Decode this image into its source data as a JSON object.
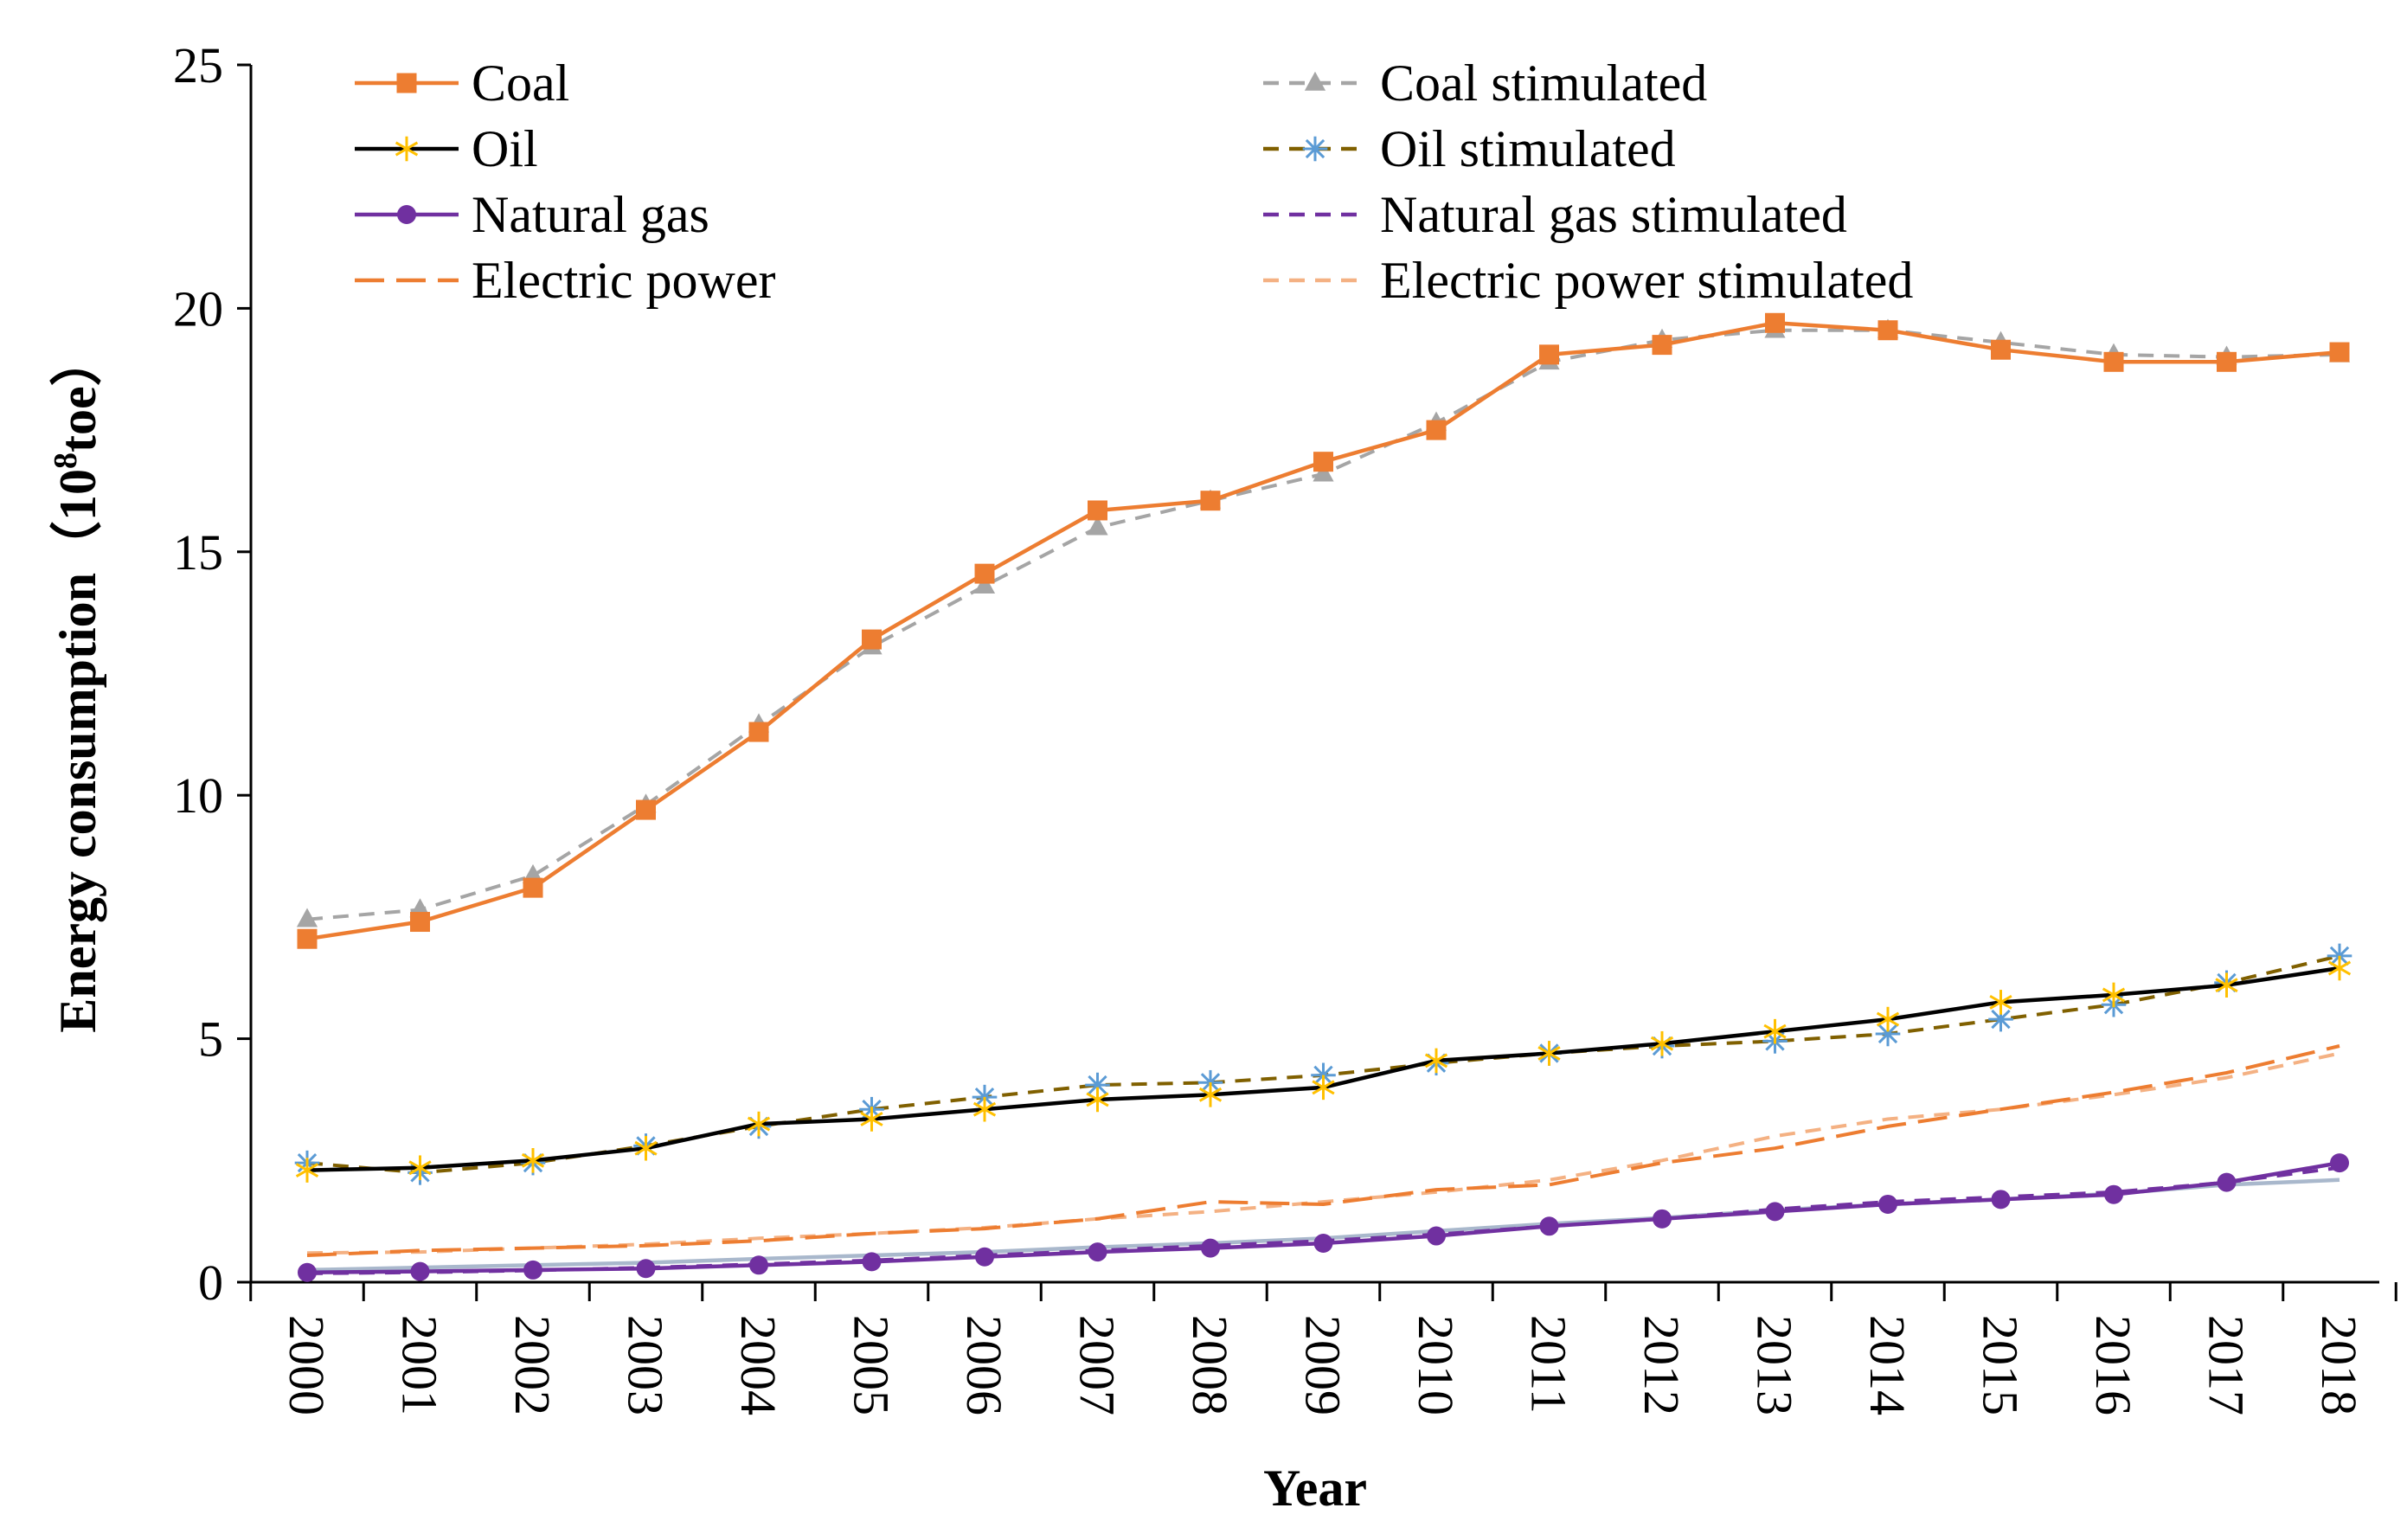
{
  "chart_data": {
    "type": "line",
    "title": "",
    "xlabel": "Year",
    "ylabel": "Energy consumption",
    "ylabel_paren_open": "（",
    "ylabel_unit_base": "10",
    "ylabel_unit_exp": "8",
    "ylabel_unit_rest": "toe",
    "ylabel_paren_close": "）",
    "ylim": [
      0,
      25
    ],
    "yticks": [
      0,
      5,
      10,
      15,
      20,
      25
    ],
    "grid": false,
    "legend_position": "top",
    "categories": [
      "2000",
      "2001",
      "2002",
      "2003",
      "2004",
      "2005",
      "2006",
      "2007",
      "2008",
      "2009",
      "2010",
      "2011",
      "2012",
      "2013",
      "2014",
      "2015",
      "2016",
      "2017",
      "2018"
    ],
    "series": [
      {
        "name": "Coal",
        "color": "#ED7D31",
        "dash": "solid",
        "marker": "square",
        "marker_color": "#ED7D31",
        "values": [
          7.05,
          7.4,
          8.1,
          9.7,
          11.3,
          13.2,
          14.55,
          15.85,
          16.05,
          16.85,
          17.5,
          19.05,
          19.25,
          19.7,
          19.55,
          19.15,
          18.9,
          18.9,
          19.1
        ]
      },
      {
        "name": "Coal stimulated",
        "color": "#A5A5A5",
        "dash": "dashed",
        "marker": "triangle",
        "marker_color": "#A5A5A5",
        "values": [
          7.45,
          7.65,
          8.35,
          9.8,
          11.45,
          13.05,
          14.3,
          15.5,
          16.05,
          16.6,
          17.65,
          18.9,
          19.35,
          19.55,
          19.55,
          19.3,
          19.05,
          19.0,
          19.05
        ]
      },
      {
        "name": "Oil",
        "color": "#000000",
        "dash": "solid",
        "marker": "star",
        "marker_color": "#FFC000",
        "values": [
          2.3,
          2.35,
          2.5,
          2.75,
          3.25,
          3.35,
          3.55,
          3.75,
          3.85,
          4.0,
          4.55,
          4.7,
          4.9,
          5.15,
          5.4,
          5.75,
          5.9,
          6.1,
          6.45
        ]
      },
      {
        "name": "Oil stimulated",
        "color": "#806000",
        "dash": "dashed",
        "marker": "asterisk",
        "marker_color": "#5B9BD5",
        "values": [
          2.45,
          2.25,
          2.45,
          2.8,
          3.2,
          3.55,
          3.8,
          4.05,
          4.1,
          4.25,
          4.5,
          4.7,
          4.85,
          4.95,
          5.1,
          5.4,
          5.7,
          6.15,
          6.7
        ]
      },
      {
        "name": "Natural gas",
        "color": "#7030A0",
        "dash": "solid",
        "marker": "circle",
        "marker_color": "#7030A0",
        "values": [
          0.2,
          0.22,
          0.25,
          0.28,
          0.35,
          0.42,
          0.52,
          0.62,
          0.7,
          0.8,
          0.95,
          1.15,
          1.3,
          1.45,
          1.6,
          1.7,
          1.8,
          2.05,
          2.45
        ]
      },
      {
        "name": "Natural gas stimulated",
        "color": "#7030A0",
        "dash": "dashed",
        "marker": "none",
        "marker_color": "#7030A0",
        "values": [
          0.18,
          0.2,
          0.24,
          0.3,
          0.37,
          0.45,
          0.55,
          0.65,
          0.75,
          0.85,
          0.98,
          1.15,
          1.3,
          1.5,
          1.65,
          1.75,
          1.85,
          2.05,
          2.35
        ]
      },
      {
        "name": "Electric power",
        "color": "#ED7D31",
        "dash": "longdash",
        "marker": "none",
        "marker_color": "#ED7D31",
        "values": [
          0.55,
          0.65,
          0.7,
          0.75,
          0.85,
          1.0,
          1.1,
          1.3,
          1.65,
          1.6,
          1.9,
          2.0,
          2.45,
          2.75,
          3.2,
          3.55,
          3.9,
          4.3,
          4.85
        ]
      },
      {
        "name": "Electric power stimulated",
        "color": "#F4B183",
        "dash": "dashed",
        "marker": "none",
        "marker_color": "#F4B183",
        "values": [
          0.6,
          0.62,
          0.7,
          0.78,
          0.9,
          1.0,
          1.12,
          1.3,
          1.45,
          1.65,
          1.85,
          2.1,
          2.5,
          3.0,
          3.35,
          3.55,
          3.85,
          4.2,
          4.7
        ]
      },
      {
        "name": "",
        "color": "#A9B8CC",
        "dash": "solid",
        "marker": "none",
        "marker_color": "#A9B8CC",
        "values": [
          0.25,
          0.3,
          0.35,
          0.4,
          0.48,
          0.55,
          0.62,
          0.72,
          0.8,
          0.9,
          1.05,
          1.2,
          1.32,
          1.48,
          1.6,
          1.7,
          1.82,
          2.0,
          2.1
        ]
      }
    ]
  }
}
